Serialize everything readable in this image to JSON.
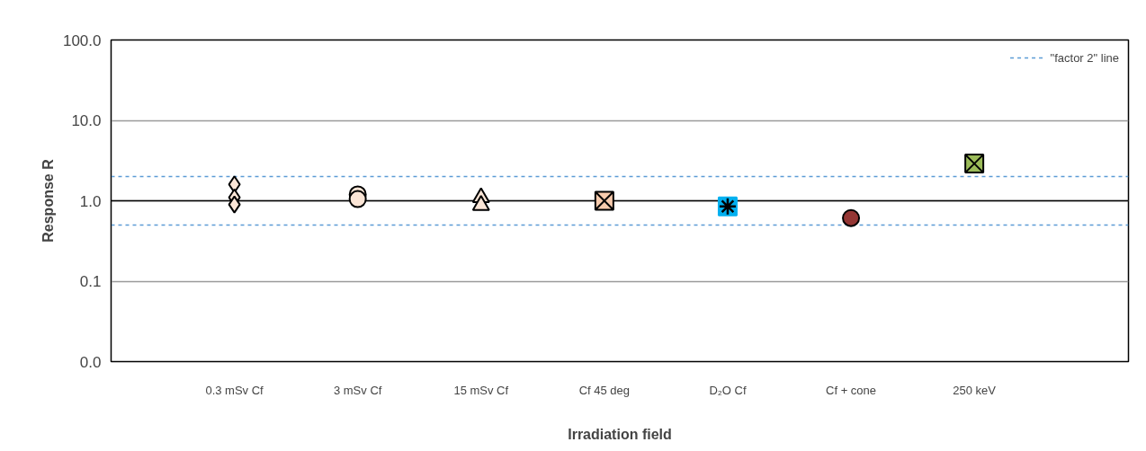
{
  "chart_data": {
    "type": "scatter",
    "xlabel": "Irradiation field",
    "ylabel": "Response R",
    "categories": [
      "0.3 mSv Cf",
      "3 mSv Cf",
      "15 mSv Cf",
      "Cf 45 deg",
      "D₂O Cf",
      "Cf + cone",
      "250 keV"
    ],
    "series": [
      {
        "color": "#fbe5d6",
        "marker": "diamond",
        "x": [
          "0.3 mSv Cf",
          "0.3 mSv Cf",
          "0.3 mSv Cf"
        ],
        "values": [
          1.6,
          1.1,
          0.9
        ]
      },
      {
        "color": "#fbe5d6",
        "marker": "circle",
        "x": [
          "3 mSv Cf",
          "3 mSv Cf"
        ],
        "values": [
          1.2,
          1.05
        ]
      },
      {
        "color": "#fbe5d6",
        "marker": "triangle",
        "x": [
          "15 mSv Cf",
          "15 mSv Cf"
        ],
        "values": [
          1.1,
          0.88
        ]
      },
      {
        "color": "#f8cbad",
        "marker": "cross",
        "x": [
          "Cf 45 deg"
        ],
        "values": [
          1.0
        ]
      },
      {
        "color": "#00b0f0",
        "marker": "square",
        "x": [
          "D₂O Cf"
        ],
        "values": [
          0.85
        ]
      },
      {
        "color": "#943634",
        "marker": "circle",
        "x": [
          "Cf + cone"
        ],
        "values": [
          0.61
        ]
      },
      {
        "color": "#9bbb59",
        "marker": "cross",
        "x": [
          "250 keV"
        ],
        "values": [
          2.9
        ]
      }
    ],
    "log": true,
    "ylim": [
      0.01,
      100
    ],
    "yticks": [
      {
        "value": 0.01,
        "label": "0.0"
      },
      {
        "value": 0.1,
        "label": "0.1"
      },
      {
        "value": 1,
        "label": "1.0"
      },
      {
        "value": 10,
        "label": "10.0"
      },
      {
        "value": 100,
        "label": "100.0"
      }
    ],
    "grid": "y",
    "ref_lines": [
      {
        "axis": "y",
        "value": 1,
        "label": null,
        "color": "#000000",
        "line_style": "solid"
      },
      {
        "axis": "y",
        "value": 2,
        "label": "\"factor 2\" line",
        "color": "#5b9bd5",
        "line_style": "dashed"
      },
      {
        "axis": "y",
        "value": 0.5,
        "label": null,
        "color": "#5b9bd5",
        "line_style": "dashed"
      }
    ],
    "legend": "top right"
  }
}
